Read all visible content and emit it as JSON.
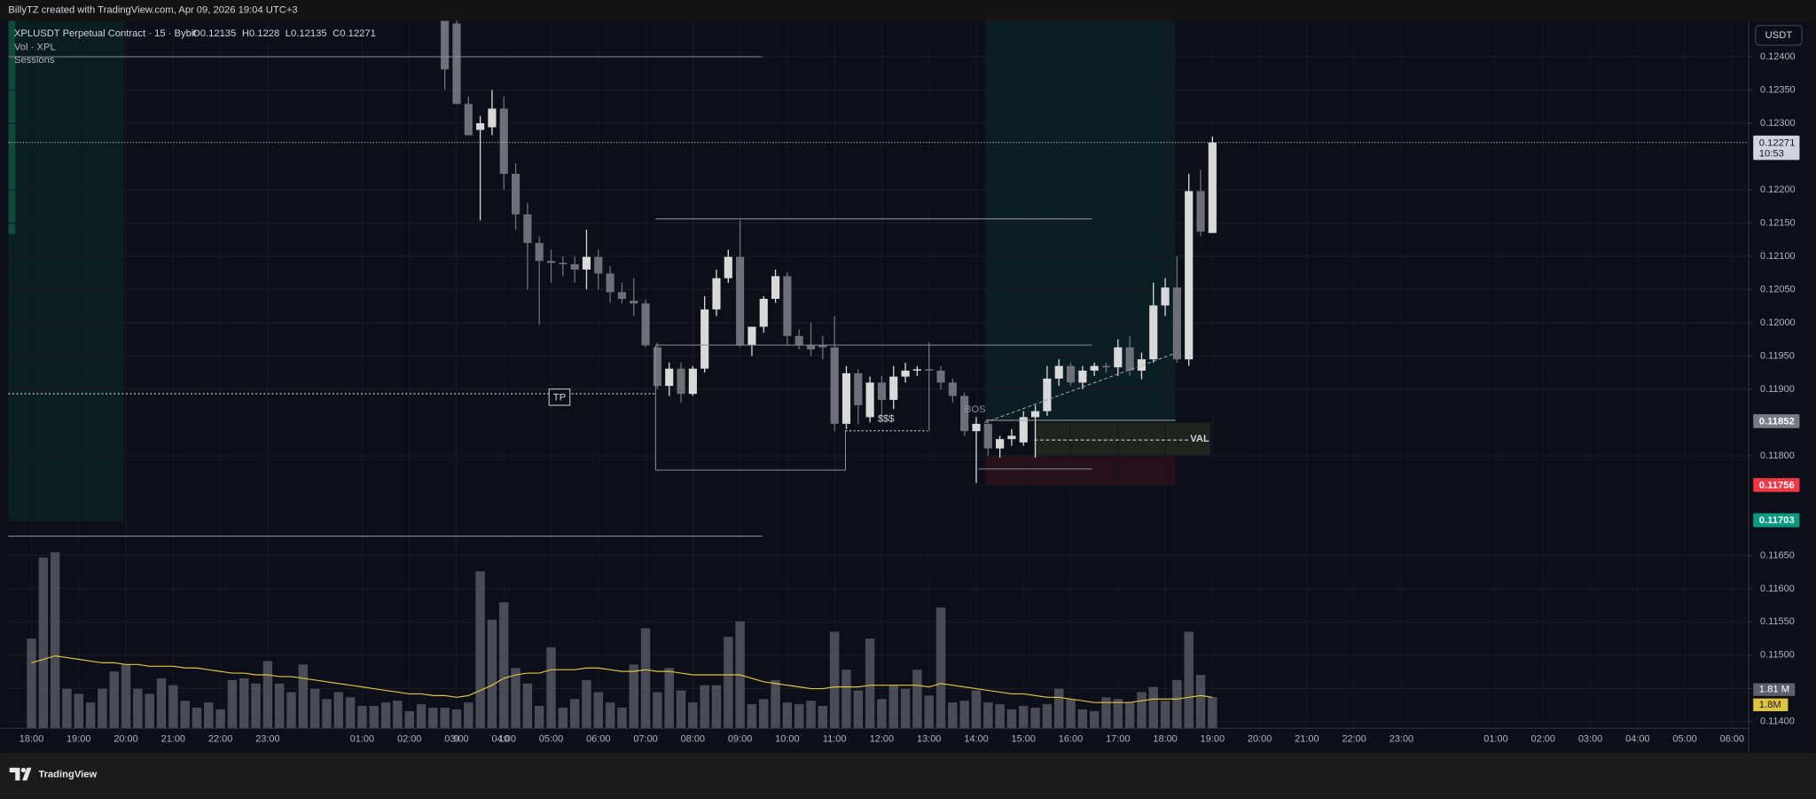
{
  "chart_data": {
    "type": "candlestick",
    "created_by": "BillyTZ created with TradingView.com, Apr 09, 2026 19:04 UTC+3",
    "title": "XPLUSDT Perpetual Contract · 15 · Bybit",
    "ohlc_labels": [
      "O",
      "H",
      "L",
      "C"
    ],
    "indicators": [
      "Vol · XPL",
      "Sessions"
    ],
    "currency": "USDT",
    "countdown": "10:53",
    "annotations": [
      "TP",
      "$$$",
      "BOS",
      "VAL"
    ],
    "brand": "TradingView",
    "up_color": "#d9d9d9",
    "down_color": "#6e7079",
    "volume_color": "#5d606b",
    "ma_color": "#e0c341",
    "xlim": [
      -0.49,
      36.35
    ],
    "ylim": [
      0.1139,
      0.12454
    ],
    "volume_ylim": [
      0,
      41
    ],
    "grid": true,
    "xticks": [
      {
        "value": 0,
        "label": "18:00"
      },
      {
        "value": 1,
        "label": "19:00"
      },
      {
        "value": 2,
        "label": "20:00"
      },
      {
        "value": 3,
        "label": "21:00"
      },
      {
        "value": 4,
        "label": "22:00"
      },
      {
        "value": 5,
        "label": "23:00"
      },
      9,
      {
        "value": 7,
        "label": "01:00"
      },
      {
        "value": 8,
        "label": "02:00"
      },
      {
        "value": 9,
        "label": "03:00"
      },
      {
        "value": 10,
        "label": "04:00"
      },
      {
        "value": 11,
        "label": "05:00"
      },
      {
        "value": 12,
        "label": "06:00"
      },
      {
        "value": 13,
        "label": "07:00"
      },
      {
        "value": 14,
        "label": "08:00"
      },
      {
        "value": 15,
        "label": "09:00"
      },
      {
        "value": 16,
        "label": "10:00"
      },
      {
        "value": 17,
        "label": "11:00"
      },
      {
        "value": 18,
        "label": "12:00"
      },
      {
        "value": 19,
        "label": "13:00"
      },
      {
        "value": 20,
        "label": "14:00"
      },
      {
        "value": 21,
        "label": "15:00"
      },
      {
        "value": 22,
        "label": "16:00"
      },
      {
        "value": 23,
        "label": "17:00"
      },
      {
        "value": 24,
        "label": "18:00"
      },
      {
        "value": 25,
        "label": "19:00"
      },
      {
        "value": 26,
        "label": "20:00"
      },
      {
        "value": 27,
        "label": "21:00"
      },
      {
        "value": 28,
        "label": "22:00"
      },
      {
        "value": 29,
        "label": "23:00"
      },
      10,
      {
        "value": 31,
        "label": "01:00"
      },
      {
        "value": 32,
        "label": "02:00"
      },
      {
        "value": 33,
        "label": "03:00"
      },
      {
        "value": 34,
        "label": "04:00"
      },
      {
        "value": 35,
        "label": "05:00"
      },
      {
        "value": 36,
        "label": "06:00"
      }
    ],
    "yticks": [
      {
        "value": 0.124,
        "label": "0.12400"
      },
      {
        "value": 0.1235,
        "label": "0.12350"
      },
      {
        "value": 0.123,
        "label": "0.12300"
      },
      {
        "value": 0.122,
        "label": "0.12200"
      },
      {
        "value": 0.1215,
        "label": "0.12150"
      },
      {
        "value": 0.121,
        "label": "0.12100"
      },
      {
        "value": 0.1205,
        "label": "0.12050"
      },
      {
        "value": 0.12,
        "label": "0.12000"
      },
      {
        "value": 0.1195,
        "label": "0.11950"
      },
      {
        "value": 0.119,
        "label": "0.11900"
      },
      {
        "value": 0.118,
        "label": "0.11800"
      },
      {
        "value": 0.1165,
        "label": "0.11650"
      },
      {
        "value": 0.116,
        "label": "0.11600"
      },
      {
        "value": 0.1155,
        "label": "0.11550"
      },
      {
        "value": 0.115,
        "label": "0.11500"
      },
      {
        "value": 0.1145,
        "label": "0.11450"
      },
      {
        "value": 0.114,
        "label": "0.11400"
      }
    ],
    "levels": [
      {
        "value": 0.11852,
        "color": "#787b86"
      },
      {
        "value": 0.11756,
        "color": "#f23645"
      },
      {
        "value": 0.11703,
        "color": "#089981"
      }
    ],
    "candles": {
      "x": [
        8.75,
        9,
        9.25,
        9.5,
        9.75,
        10,
        10.25,
        10.5,
        10.75,
        11,
        11.25,
        11.5,
        11.75,
        12,
        12.25,
        12.5,
        12.75,
        13,
        13.25,
        13.5,
        13.75,
        14,
        14.25,
        14.5,
        14.75,
        15,
        15.25,
        15.5,
        15.75,
        16,
        16.25,
        16.5,
        16.75,
        17,
        17.25,
        17.5,
        17.75,
        18,
        18.25,
        18.5,
        18.75,
        19,
        19.25,
        19.5,
        19.75,
        20,
        20.25,
        20.5,
        20.75,
        21,
        21.25,
        21.5,
        21.75,
        22,
        22.25,
        22.5,
        22.75,
        23,
        23.25,
        23.5,
        23.75,
        24,
        24.25,
        24.5,
        24.75,
        25
      ],
      "open": [
        0.12454,
        0.1245,
        0.12329,
        0.1229,
        0.12294,
        0.12322,
        0.12224,
        0.12163,
        0.1212,
        0.12093,
        0.1209,
        0.12088,
        0.1208,
        0.12099,
        0.12074,
        0.12046,
        0.12033,
        0.12029,
        0.11963,
        0.11905,
        0.11931,
        0.11893,
        0.11931,
        0.1202,
        0.12067,
        0.12099,
        0.11966,
        0.11994,
        0.12036,
        0.1207,
        0.1198,
        0.11966,
        0.11966,
        0.11963,
        0.11848,
        0.11924,
        0.11858,
        0.1191,
        0.11884,
        0.11919,
        0.11928,
        0.1193,
        0.11928,
        0.1191,
        0.1189,
        0.11837,
        0.11848,
        0.11811,
        0.11825,
        0.1182,
        0.11858,
        0.11867,
        0.11916,
        0.11935,
        0.1191,
        0.11928,
        0.11935,
        0.11933,
        0.11963,
        0.11928,
        0.11945,
        0.12026,
        0.12053,
        0.11945,
        0.12198,
        0.12135
      ],
      "high": [
        0.1246,
        0.1246,
        0.1234,
        0.12311,
        0.1235,
        0.1234,
        0.1224,
        0.1218,
        0.1213,
        0.1211,
        0.121,
        0.121,
        0.1214,
        0.1211,
        0.12085,
        0.1206,
        0.12067,
        0.12035,
        0.1197,
        0.1194,
        0.1194,
        0.11935,
        0.1204,
        0.1208,
        0.1211,
        0.12154,
        0.11994,
        0.1204,
        0.1208,
        0.12076,
        0.1199,
        0.12,
        0.1198,
        0.1201,
        0.11935,
        0.1193,
        0.11919,
        0.1192,
        0.11935,
        0.1194,
        0.11935,
        0.1197,
        0.11935,
        0.11916,
        0.11895,
        0.11858,
        0.11855,
        0.1183,
        0.1184,
        0.11867,
        0.11876,
        0.11935,
        0.11945,
        0.1194,
        0.11935,
        0.1194,
        0.1194,
        0.11975,
        0.1198,
        0.11955,
        0.1206,
        0.12067,
        0.121,
        0.12224,
        0.1223,
        0.1228
      ],
      "low": [
        0.1235,
        0.12329,
        0.12282,
        0.12154,
        0.12282,
        0.122,
        0.1214,
        0.1205,
        0.11997,
        0.1206,
        0.1207,
        0.1206,
        0.1205,
        0.1205,
        0.1203,
        0.12029,
        0.1201,
        0.11963,
        0.119,
        0.1189,
        0.1188,
        0.1189,
        0.11925,
        0.1201,
        0.1206,
        0.11963,
        0.1195,
        0.11985,
        0.1203,
        0.11966,
        0.1196,
        0.1195,
        0.11945,
        0.11837,
        0.1184,
        0.11848,
        0.1185,
        0.11858,
        0.1187,
        0.1191,
        0.1192,
        0.11837,
        0.119,
        0.1188,
        0.1183,
        0.11759,
        0.118,
        0.11797,
        0.11815,
        0.11815,
        0.11797,
        0.1186,
        0.11905,
        0.11905,
        0.119,
        0.1192,
        0.11925,
        0.1192,
        0.1192,
        0.11915,
        0.1194,
        0.1201,
        0.1194,
        0.11935,
        0.1213,
        0.12135
      ],
      "close": [
        0.12381,
        0.12329,
        0.12282,
        0.123,
        0.12322,
        0.12224,
        0.12163,
        0.1212,
        0.12093,
        0.1209,
        0.12088,
        0.1208,
        0.12099,
        0.12074,
        0.12046,
        0.12036,
        0.12029,
        0.11966,
        0.11905,
        0.11931,
        0.11893,
        0.11931,
        0.1202,
        0.12067,
        0.12099,
        0.11966,
        0.11994,
        0.12036,
        0.1207,
        0.1198,
        0.11966,
        0.1196,
        0.11963,
        0.11848,
        0.11924,
        0.11876,
        0.1191,
        0.11884,
        0.11919,
        0.11928,
        0.1193,
        0.11928,
        0.1191,
        0.1189,
        0.11837,
        0.11848,
        0.11811,
        0.11825,
        0.1183,
        0.11858,
        0.11867,
        0.11916,
        0.11935,
        0.1191,
        0.11928,
        0.11935,
        0.11933,
        0.11963,
        0.11928,
        0.11945,
        0.12026,
        0.12053,
        0.11945,
        0.12198,
        0.12137,
        0.12271
      ]
    },
    "volume": {
      "x": [
        0,
        0.25,
        0.5,
        0.75,
        1,
        1.25,
        1.5,
        1.75,
        2,
        2.25,
        2.5,
        2.75,
        3,
        3.25,
        3.5,
        3.75,
        4,
        4.25,
        4.5,
        4.75,
        5,
        5.25,
        5.5,
        5.75,
        6,
        6.25,
        6.5,
        6.75,
        7,
        7.25,
        7.5,
        7.75,
        8,
        8.25,
        8.5,
        8.75,
        9,
        9.25,
        9.5,
        9.75,
        10,
        10.25,
        10.5,
        10.75,
        11,
        11.25,
        11.5,
        11.75,
        12,
        12.25,
        12.5,
        12.75,
        13,
        13.25,
        13.5,
        13.75,
        14,
        14.25,
        14.5,
        14.75,
        15,
        15.25,
        15.5,
        15.75,
        16,
        16.25,
        16.5,
        16.75,
        17,
        17.25,
        17.5,
        17.75,
        18,
        18.25,
        18.5,
        18.75,
        19,
        19.25,
        19.5,
        19.75,
        20,
        20.25,
        20.5,
        20.75,
        21,
        21.25,
        21.5,
        21.75,
        22,
        22.25,
        22.5,
        22.75,
        23,
        23.25,
        23.5,
        23.75,
        24,
        24.25,
        24.5,
        24.75,
        25
      ],
      "values": [
        5.2,
        9.9,
        10.2,
        2.3,
        2.0,
        1.5,
        2.3,
        3.3,
        3.7,
        2.3,
        2.0,
        2.9,
        2.5,
        1.6,
        1.2,
        1.5,
        1.1,
        2.8,
        2.9,
        2.6,
        3.9,
        2.6,
        2.1,
        3.7,
        2.3,
        1.7,
        2.1,
        1.8,
        1.3,
        1.3,
        1.5,
        1.6,
        1.0,
        1.4,
        1.2,
        1.2,
        1.1,
        1.5,
        9.1,
        6.3,
        7.3,
        3.5,
        2.6,
        1.3,
        4.7,
        1.2,
        1.7,
        2.8,
        2.1,
        1.5,
        1.2,
        3.7,
        5.8,
        2.1,
        3.5,
        2.2,
        1.5,
        2.5,
        2.5,
        5.3,
        6.2,
        1.4,
        1.7,
        2.8,
        1.5,
        1.4,
        1.6,
        1.3,
        5.6,
        3.4,
        2.2,
        5.2,
        1.7,
        2.5,
        2.3,
        3.4,
        1.9,
        7.0,
        1.5,
        1.6,
        2.2,
        1.5,
        1.4,
        1.1,
        1.3,
        1.2,
        1.4,
        2.3,
        1.7,
        1.1,
        1.0,
        1.8,
        1.7,
        1.5,
        2.1,
        2.4,
        1.6,
        2.8,
        5.6,
        3.1,
        1.81
      ],
      "last_label": "1.81 M",
      "ma": [
        3.8,
        4.0,
        4.2,
        4.1,
        4.0,
        3.9,
        3.8,
        3.8,
        3.7,
        3.7,
        3.6,
        3.6,
        3.6,
        3.5,
        3.5,
        3.4,
        3.3,
        3.2,
        3.2,
        3.1,
        3.1,
        3.0,
        3.0,
        2.9,
        2.8,
        2.7,
        2.6,
        2.5,
        2.4,
        2.3,
        2.2,
        2.1,
        2.0,
        2.0,
        1.9,
        1.9,
        1.8,
        1.9,
        2.2,
        2.5,
        2.9,
        3.1,
        3.2,
        3.2,
        3.4,
        3.4,
        3.4,
        3.5,
        3.5,
        3.4,
        3.3,
        3.3,
        3.4,
        3.3,
        3.3,
        3.2,
        3.1,
        3.1,
        3.1,
        3.1,
        3.1,
        2.9,
        2.7,
        2.6,
        2.5,
        2.4,
        2.3,
        2.3,
        2.4,
        2.4,
        2.4,
        2.5,
        2.5,
        2.5,
        2.5,
        2.5,
        2.4,
        2.6,
        2.5,
        2.4,
        2.3,
        2.2,
        2.1,
        2.0,
        2.0,
        1.9,
        1.8,
        1.8,
        1.7,
        1.6,
        1.5,
        1.5,
        1.5,
        1.5,
        1.6,
        1.7,
        1.7,
        1.7,
        1.8,
        1.9,
        1.8
      ],
      "ma_last_label": "1.8M"
    }
  }
}
